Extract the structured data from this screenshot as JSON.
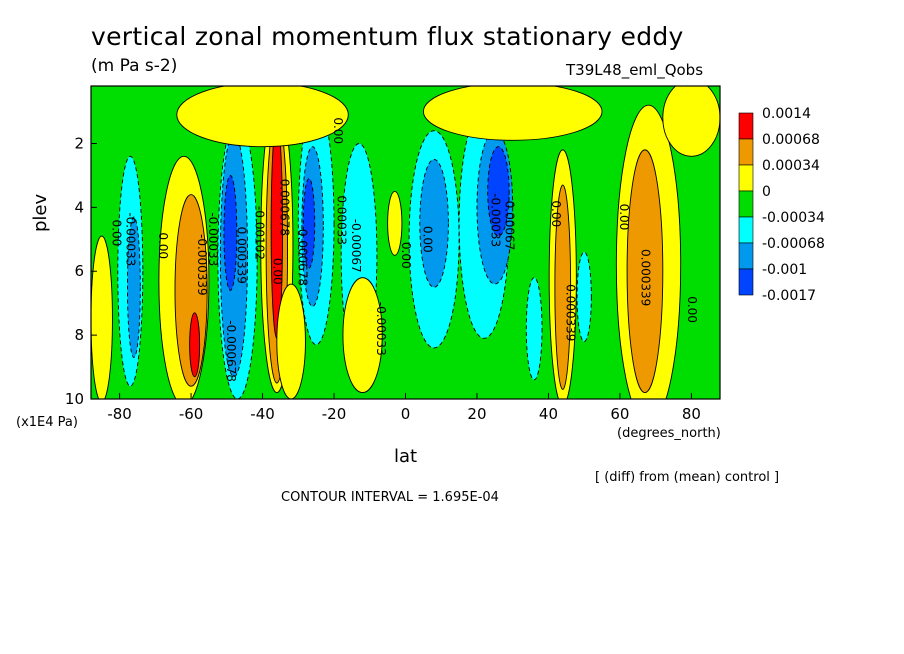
{
  "title": "vertical zonal momentum flux stationary eddy",
  "units": "(m Pa s-2)",
  "run_label": "T39L48_eml_Qobs",
  "note": "[ (diff) from (mean) control ]",
  "contour_interval": "CONTOUR INTERVAL = 1.695E-04",
  "chart_data": {
    "type": "heatmap",
    "xlabel": "lat",
    "x_units": "(degrees_north)",
    "ylabel": "plev",
    "y_units": "(x1E4 Pa)",
    "xlim": [
      -88,
      88
    ],
    "ylim": [
      10,
      0.2
    ],
    "x_ticks": [
      "-80",
      "-60",
      "-40",
      "-20",
      "0",
      "20",
      "40",
      "60",
      "80"
    ],
    "y_ticks": [
      "2",
      "4",
      "6",
      "8",
      "10"
    ],
    "legend": {
      "position": "right",
      "levels": [
        "0.0014",
        "0.00068",
        "0.00034",
        "0",
        "-0.00034",
        "-0.00068",
        "-0.001",
        "-0.0017"
      ],
      "colors": [
        "#ff0000",
        "#ee9900",
        "#ffff00",
        "#00dd00",
        "#00ffff",
        "#0099ee",
        "#0044ff"
      ]
    },
    "contour_labels": [
      "0.00",
      "0.00",
      "-0.00033",
      "-0.000339",
      "-0.00033",
      "0.000339",
      "-0.00102",
      "-0.000678",
      "0.00",
      "0.000678",
      "-0.000678",
      "0.00",
      "-0.00067",
      "0.00033",
      "-0.00033",
      "0.00",
      "0.00",
      "-0.00033",
      "-0.00067",
      "0.00",
      "0.000339",
      "0.00",
      "0.000339",
      "0.00"
    ]
  }
}
